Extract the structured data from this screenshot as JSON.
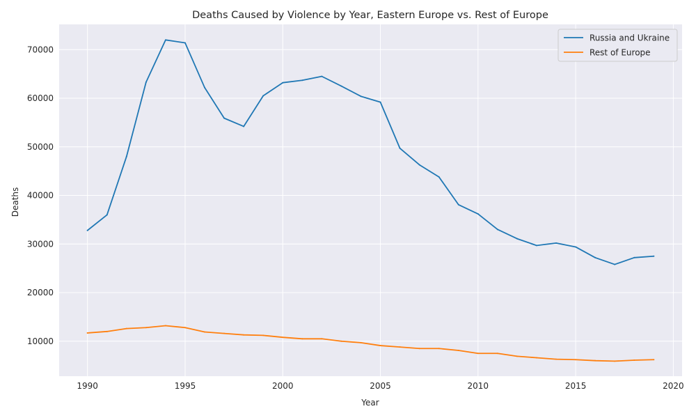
{
  "chart_data": {
    "type": "line",
    "title": "Deaths Caused by Violence by Year, Eastern Europe vs. Rest of Europe",
    "xlabel": "Year",
    "ylabel": "Deaths",
    "xlim": [
      1988.55,
      2020.45
    ],
    "ylim": [
      2800,
      75200
    ],
    "xticks": [
      1990,
      1995,
      2000,
      2005,
      2010,
      2015,
      2020
    ],
    "yticks": [
      10000,
      20000,
      30000,
      40000,
      50000,
      60000,
      70000
    ],
    "grid": true,
    "legend_position": "upper right",
    "x": [
      1990,
      1991,
      1992,
      1993,
      1994,
      1995,
      1996,
      1997,
      1998,
      1999,
      2000,
      2001,
      2002,
      2003,
      2004,
      2005,
      2006,
      2007,
      2008,
      2009,
      2010,
      2011,
      2012,
      2013,
      2014,
      2015,
      2016,
      2017,
      2018,
      2019
    ],
    "series": [
      {
        "name": "Russia and Ukraine",
        "color": "#1f77b4",
        "values": [
          32800,
          36000,
          48000,
          63300,
          72000,
          71400,
          62200,
          55900,
          54200,
          60500,
          63200,
          63700,
          64500,
          62500,
          60400,
          59200,
          49700,
          46300,
          43800,
          38100,
          36200,
          33000,
          31100,
          29700,
          30200,
          29400,
          27200,
          25800,
          27200,
          27500
        ]
      },
      {
        "name": "Rest of Europe",
        "color": "#ff7f0e",
        "values": [
          11700,
          12000,
          12600,
          12800,
          13200,
          12800,
          11900,
          11600,
          11300,
          11200,
          10800,
          10500,
          10500,
          10000,
          9700,
          9100,
          8800,
          8500,
          8500,
          8100,
          7500,
          7500,
          6900,
          6600,
          6300,
          6200,
          6000,
          5900,
          6100,
          6200
        ]
      }
    ]
  }
}
